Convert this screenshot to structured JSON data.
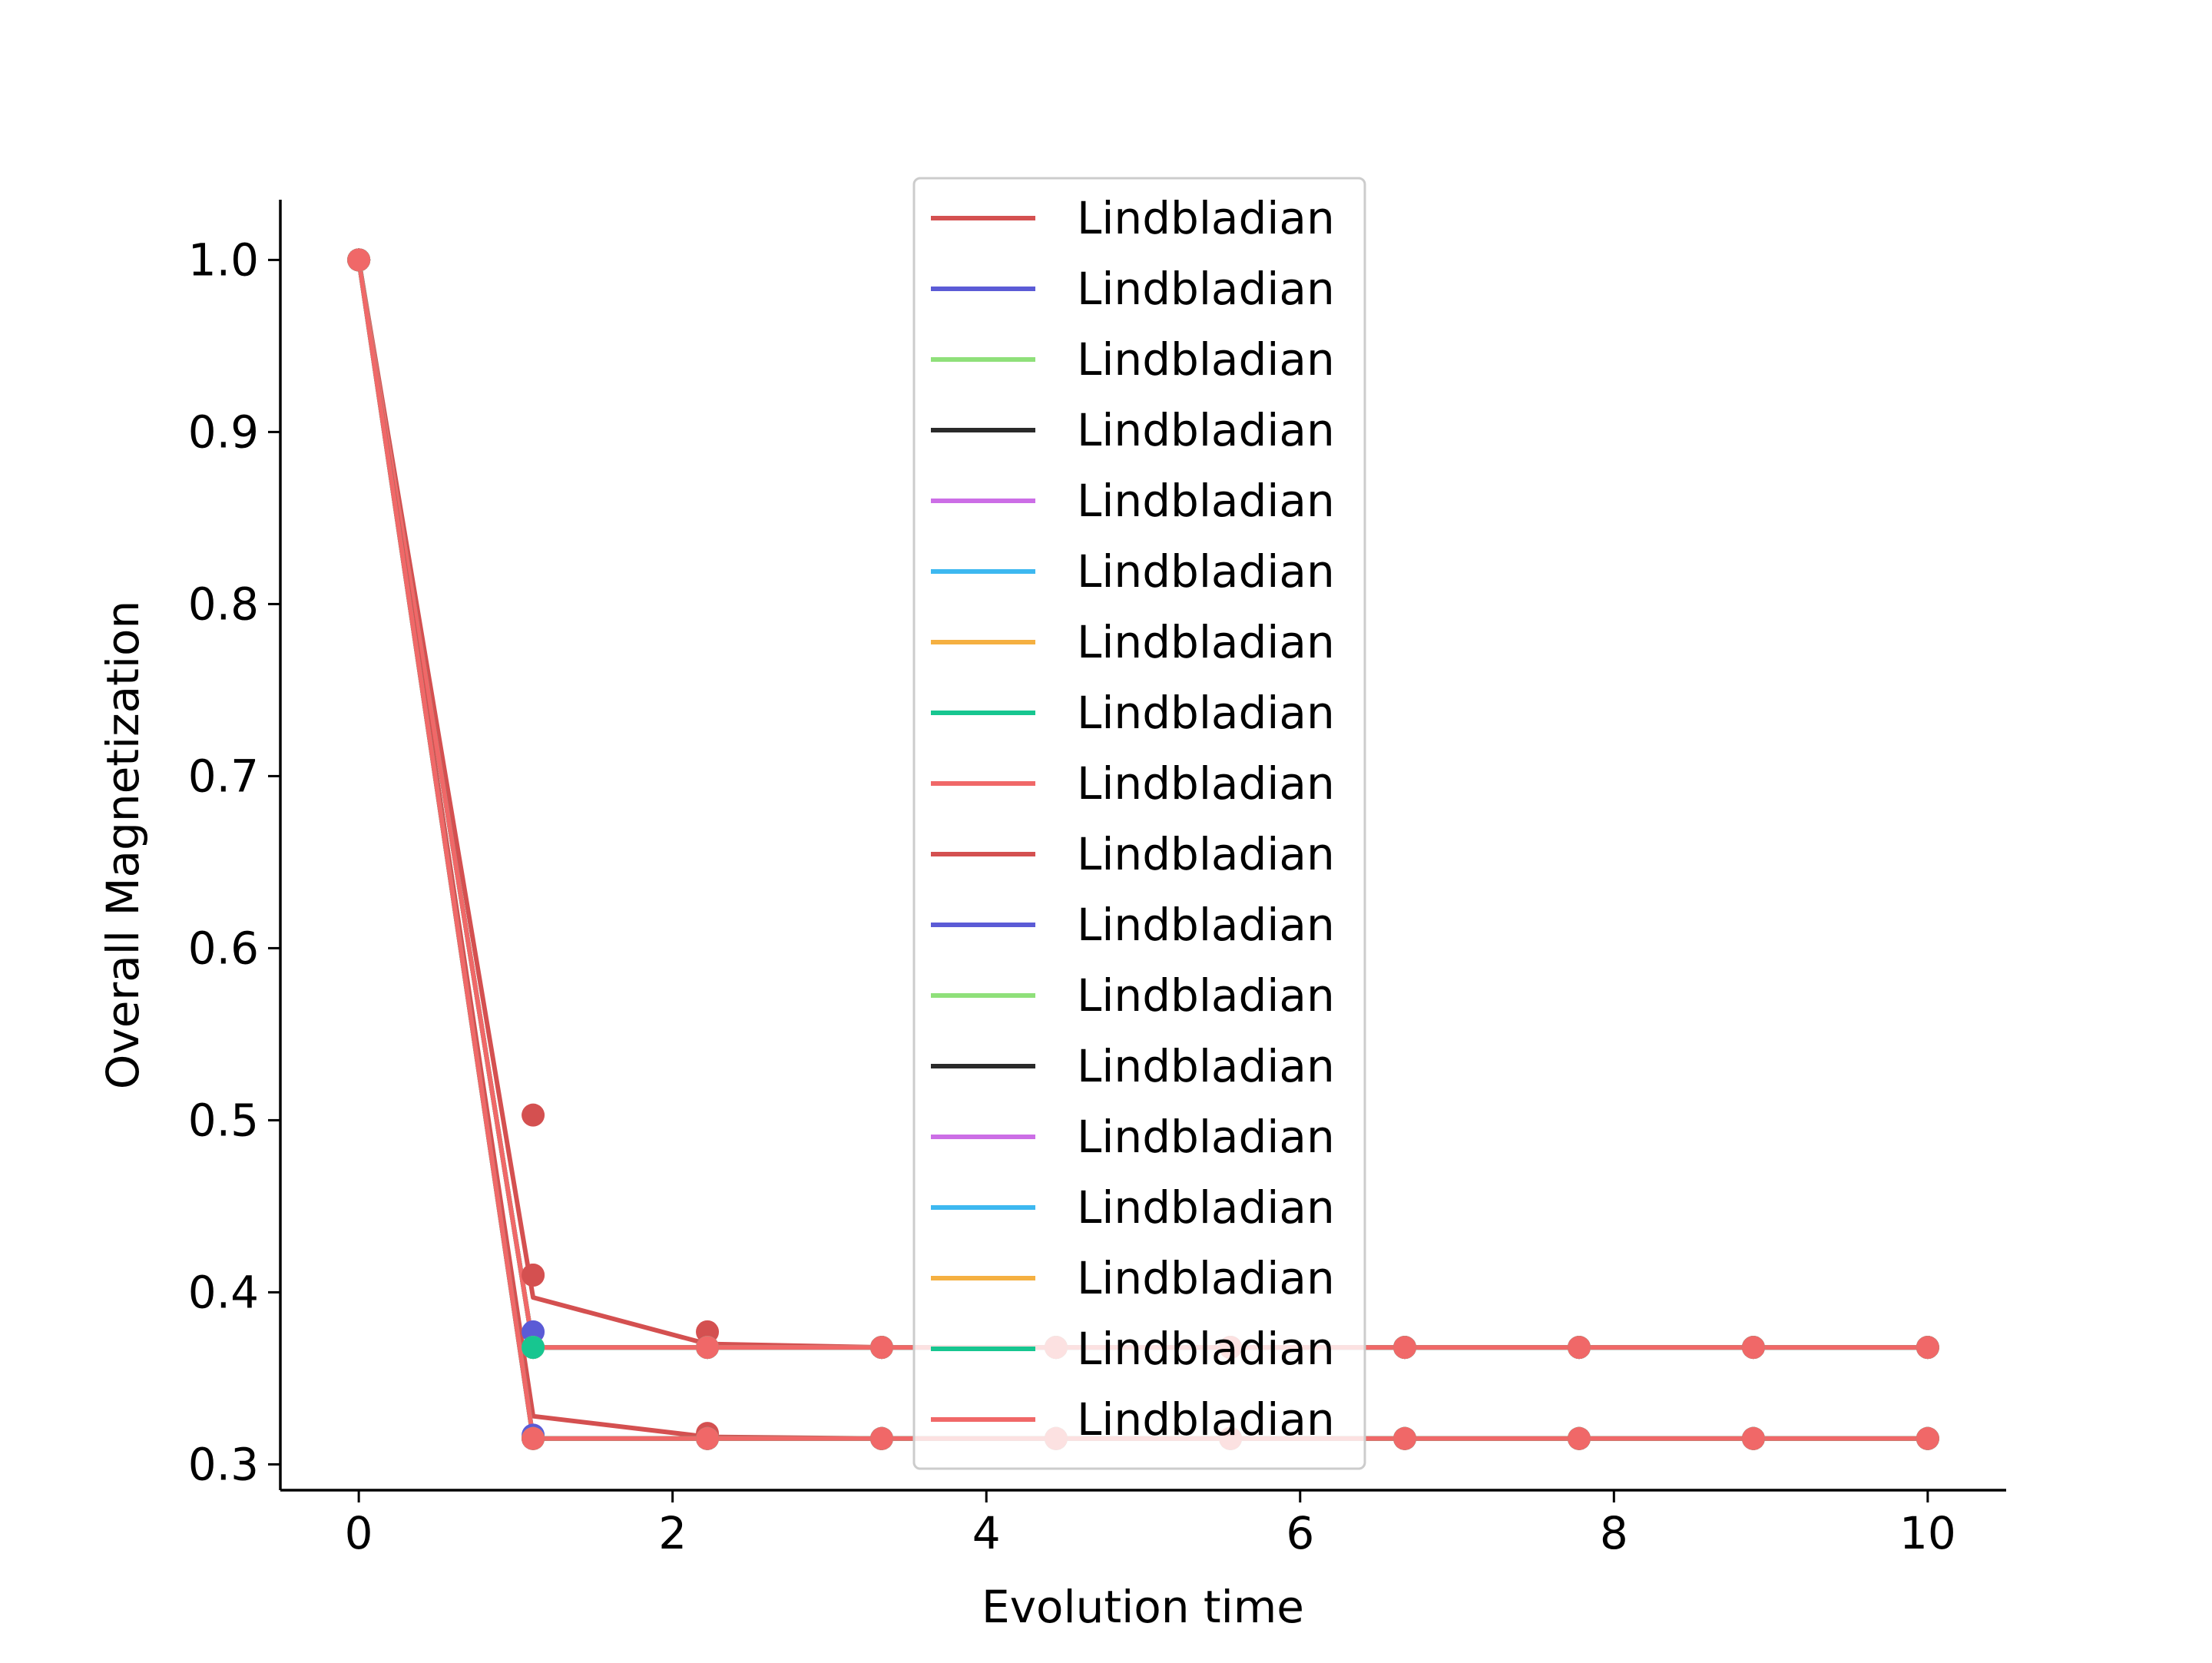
{
  "chart_data": {
    "type": "line",
    "title": "",
    "xlabel": "Evolution time",
    "ylabel": "Overall Magnetization",
    "xlim": [
      -0.5,
      10.5
    ],
    "ylim": [
      0.285,
      1.035
    ],
    "xticks": [
      0,
      2,
      4,
      6,
      8,
      10
    ],
    "xtick_labels": [
      "0",
      "2",
      "4",
      "6",
      "8",
      "10"
    ],
    "yticks": [
      0.3,
      0.4,
      0.5,
      0.6,
      0.7,
      0.8,
      0.9,
      1.0
    ],
    "ytick_labels": [
      "0.3",
      "0.4",
      "0.5",
      "0.6",
      "0.7",
      "0.8",
      "0.9",
      "1.0"
    ],
    "grid": false,
    "legend_position": "top-center",
    "x": [
      0,
      1.111,
      2.222,
      3.333,
      4.444,
      5.556,
      6.667,
      7.778,
      8.889,
      10
    ],
    "series": [
      {
        "name": "Lindbladian",
        "color": "#d45050",
        "line": [
          1.0,
          0.397,
          0.37,
          0.368,
          0.368,
          0.368,
          0.368,
          0.368,
          0.368,
          0.368
        ],
        "points": [
          1.0,
          0.503,
          0.377,
          0.368,
          0.368,
          0.368,
          0.368,
          0.368,
          0.368,
          0.368
        ]
      },
      {
        "name": "Lindbladian",
        "color": "#5b5bd6",
        "line": [
          1.0,
          0.368,
          0.368,
          0.368,
          0.368,
          0.368,
          0.368,
          0.368,
          0.368,
          0.368
        ],
        "points": [
          1.0,
          0.377,
          0.368,
          0.368,
          0.368,
          0.368,
          0.368,
          0.368,
          0.368,
          0.368
        ]
      },
      {
        "name": "Lindbladian",
        "color": "#8fe07a",
        "line": [
          1.0,
          0.368,
          0.368,
          0.368,
          0.368,
          0.368,
          0.368,
          0.368,
          0.368,
          0.368
        ],
        "points": [
          1.0,
          0.368,
          0.368,
          0.368,
          0.368,
          0.368,
          0.368,
          0.368,
          0.368,
          0.368
        ]
      },
      {
        "name": "Lindbladian",
        "color": "#2a2a2a",
        "line": [
          1.0,
          0.368,
          0.368,
          0.368,
          0.368,
          0.368,
          0.368,
          0.368,
          0.368,
          0.368
        ],
        "points": [
          1.0,
          0.368,
          0.368,
          0.368,
          0.368,
          0.368,
          0.368,
          0.368,
          0.368,
          0.368
        ]
      },
      {
        "name": "Lindbladian",
        "color": "#cc6ee6",
        "line": [
          1.0,
          0.368,
          0.368,
          0.368,
          0.368,
          0.368,
          0.368,
          0.368,
          0.368,
          0.368
        ],
        "points": [
          1.0,
          0.368,
          0.368,
          0.368,
          0.368,
          0.368,
          0.368,
          0.368,
          0.368,
          0.368
        ]
      },
      {
        "name": "Lindbladian",
        "color": "#3db8f0",
        "line": [
          1.0,
          0.368,
          0.368,
          0.368,
          0.368,
          0.368,
          0.368,
          0.368,
          0.368,
          0.368
        ],
        "points": [
          1.0,
          0.368,
          0.368,
          0.368,
          0.368,
          0.368,
          0.368,
          0.368,
          0.368,
          0.368
        ]
      },
      {
        "name": "Lindbladian",
        "color": "#f5b041",
        "line": [
          1.0,
          0.368,
          0.368,
          0.368,
          0.368,
          0.368,
          0.368,
          0.368,
          0.368,
          0.368
        ],
        "points": [
          1.0,
          0.368,
          0.368,
          0.368,
          0.368,
          0.368,
          0.368,
          0.368,
          0.368,
          0.368
        ]
      },
      {
        "name": "Lindbladian",
        "color": "#17c690",
        "line": [
          1.0,
          0.368,
          0.368,
          0.368,
          0.368,
          0.368,
          0.368,
          0.368,
          0.368,
          0.368
        ],
        "points": [
          1.0,
          0.368,
          0.368,
          0.368,
          0.368,
          0.368,
          0.368,
          0.368,
          0.368,
          0.368
        ]
      },
      {
        "name": "Lindbladian",
        "color": "#f06868",
        "line": [
          1.0,
          0.368,
          0.368,
          0.368,
          0.368,
          0.368,
          0.368,
          0.368,
          0.368,
          0.368
        ],
        "points": [
          1.0,
          0.41,
          0.368,
          0.368,
          0.368,
          0.368,
          0.368,
          0.368,
          0.368,
          0.368
        ]
      },
      {
        "name": "Lindbladian",
        "color": "#d45050",
        "line": [
          1.0,
          0.328,
          0.316,
          0.315,
          0.315,
          0.315,
          0.315,
          0.315,
          0.315,
          0.315
        ],
        "points": [
          1.0,
          0.41,
          0.318,
          0.315,
          0.315,
          0.315,
          0.315,
          0.315,
          0.315,
          0.315
        ]
      },
      {
        "name": "Lindbladian",
        "color": "#5b5bd6",
        "line": [
          1.0,
          0.315,
          0.315,
          0.315,
          0.315,
          0.315,
          0.315,
          0.315,
          0.315,
          0.315
        ],
        "points": [
          1.0,
          0.317,
          0.315,
          0.315,
          0.315,
          0.315,
          0.315,
          0.315,
          0.315,
          0.315
        ]
      },
      {
        "name": "Lindbladian",
        "color": "#8fe07a",
        "line": [
          1.0,
          0.315,
          0.315,
          0.315,
          0.315,
          0.315,
          0.315,
          0.315,
          0.315,
          0.315
        ],
        "points": [
          1.0,
          0.315,
          0.315,
          0.315,
          0.315,
          0.315,
          0.315,
          0.315,
          0.315,
          0.315
        ]
      },
      {
        "name": "Lindbladian",
        "color": "#2a2a2a",
        "line": [
          1.0,
          0.315,
          0.315,
          0.315,
          0.315,
          0.315,
          0.315,
          0.315,
          0.315,
          0.315
        ],
        "points": [
          1.0,
          0.315,
          0.315,
          0.315,
          0.315,
          0.315,
          0.315,
          0.315,
          0.315,
          0.315
        ]
      },
      {
        "name": "Lindbladian",
        "color": "#cc6ee6",
        "line": [
          1.0,
          0.315,
          0.315,
          0.315,
          0.315,
          0.315,
          0.315,
          0.315,
          0.315,
          0.315
        ],
        "points": [
          1.0,
          0.315,
          0.315,
          0.315,
          0.315,
          0.315,
          0.315,
          0.315,
          0.315,
          0.315
        ]
      },
      {
        "name": "Lindbladian",
        "color": "#3db8f0",
        "line": [
          1.0,
          0.315,
          0.315,
          0.315,
          0.315,
          0.315,
          0.315,
          0.315,
          0.315,
          0.315
        ],
        "points": [
          1.0,
          0.315,
          0.315,
          0.315,
          0.315,
          0.315,
          0.315,
          0.315,
          0.315,
          0.315
        ]
      },
      {
        "name": "Lindbladian",
        "color": "#f5b041",
        "line": [
          1.0,
          0.315,
          0.315,
          0.315,
          0.315,
          0.315,
          0.315,
          0.315,
          0.315,
          0.315
        ],
        "points": [
          1.0,
          0.315,
          0.315,
          0.315,
          0.315,
          0.315,
          0.315,
          0.315,
          0.315,
          0.315
        ]
      },
      {
        "name": "Lindbladian",
        "color": "#17c690",
        "line": [
          1.0,
          0.315,
          0.315,
          0.315,
          0.315,
          0.315,
          0.315,
          0.315,
          0.315,
          0.315
        ],
        "points": [
          1.0,
          0.315,
          0.315,
          0.315,
          0.315,
          0.315,
          0.315,
          0.315,
          0.315,
          0.315
        ]
      },
      {
        "name": "Lindbladian",
        "color": "#f06868",
        "line": [
          1.0,
          0.315,
          0.315,
          0.315,
          0.315,
          0.315,
          0.315,
          0.315,
          0.315,
          0.315
        ],
        "points": [
          1.0,
          0.315,
          0.315,
          0.315,
          0.315,
          0.315,
          0.315,
          0.315,
          0.315,
          0.315
        ]
      }
    ]
  }
}
